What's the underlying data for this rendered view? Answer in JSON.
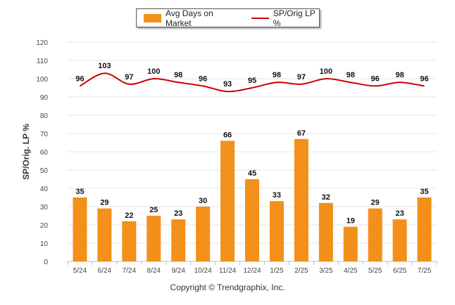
{
  "chart_data": {
    "type": "bar",
    "ylabel": "SP/Orig. LP %",
    "ylim": [
      0,
      120
    ],
    "yticks": [
      0,
      10,
      20,
      30,
      40,
      50,
      60,
      70,
      80,
      90,
      100,
      110,
      120
    ],
    "grid": true,
    "legend_placement": "top-center",
    "categories": [
      "5/24",
      "6/24",
      "7/24",
      "8/24",
      "9/24",
      "10/24",
      "11/24",
      "12/24",
      "1/25",
      "2/25",
      "3/25",
      "4/25",
      "5/25",
      "6/25",
      "7/25"
    ],
    "series": [
      {
        "name": "Avg Days on Market",
        "type": "bar",
        "color": "#F39019",
        "values": [
          35,
          29,
          22,
          25,
          23,
          30,
          66,
          45,
          33,
          67,
          32,
          19,
          29,
          23,
          35
        ]
      },
      {
        "name": "SP/Orig LP %",
        "type": "line",
        "color": "#CC0000",
        "values": [
          96,
          103,
          97,
          100,
          98,
          96,
          93,
          95,
          98,
          97,
          100,
          98,
          96,
          98,
          96
        ]
      }
    ]
  },
  "legend": {
    "bar_label": "Avg Days on Market",
    "line_label": "SP/Orig LP %",
    "bar_color": "#F39019",
    "line_color": "#CC0000"
  },
  "footer": "Copyright © Trendgraphix, Inc."
}
